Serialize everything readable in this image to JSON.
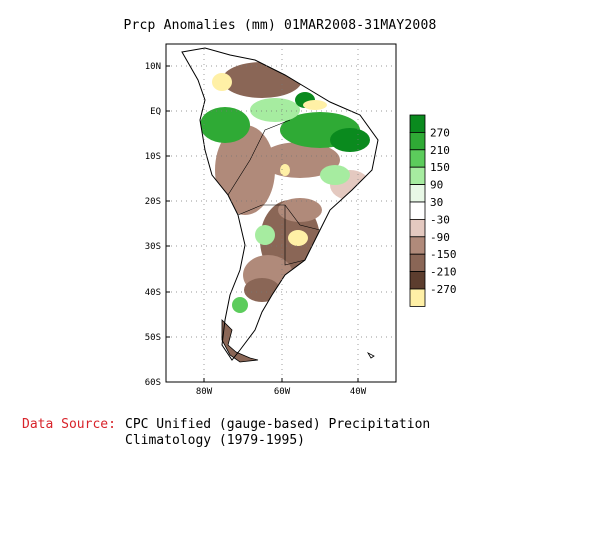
{
  "title": "Prcp Anomalies (mm) 01MAR2008-31MAY2008",
  "map": {
    "lat_labels": [
      "10N",
      "EQ",
      "10S",
      "20S",
      "30S",
      "40S",
      "50S",
      "60S"
    ],
    "lon_labels": [
      "80W",
      "60W",
      "40W"
    ],
    "extent": {
      "lon_min": -90,
      "lon_max": -32,
      "lat_min": -60,
      "lat_max": 15
    }
  },
  "colorbar": {
    "labels": [
      "270",
      "210",
      "150",
      "90",
      "30",
      "-30",
      "-90",
      "-150",
      "-210",
      "-270"
    ],
    "colors": [
      "#0a8a1e",
      "#2faa35",
      "#5ccc5c",
      "#a6eca0",
      "#e8f8e6",
      "#ffffff",
      "#e4c9c0",
      "#b08a7a",
      "#8a6656",
      "#5c3d2e",
      "#fff0a6"
    ]
  },
  "source": {
    "label": "Data Source:",
    "text": "CPC Unified (gauge-based) Precipitation Climatology (1979-1995)"
  }
}
